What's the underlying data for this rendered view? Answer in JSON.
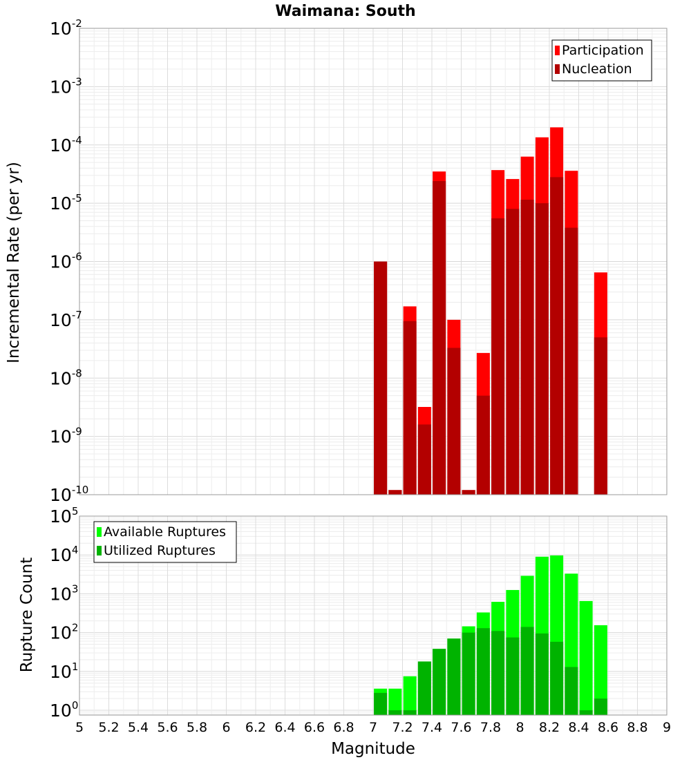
{
  "chart_data": [
    {
      "type": "bar",
      "title": "Waimana: South",
      "ylabel": "Incremental Rate (per yr)",
      "yscale": "log",
      "ylim": [
        1e-10,
        0.01
      ],
      "ytick_labels": [
        {
          "base": "10",
          "exp": "-10"
        },
        {
          "base": "10",
          "exp": "-9"
        },
        {
          "base": "10",
          "exp": "-8"
        },
        {
          "base": "10",
          "exp": "-7"
        },
        {
          "base": "10",
          "exp": "-6"
        },
        {
          "base": "10",
          "exp": "-5"
        },
        {
          "base": "10",
          "exp": "-4"
        },
        {
          "base": "10",
          "exp": "-3"
        },
        {
          "base": "10",
          "exp": "-2"
        }
      ],
      "xlim": [
        5,
        9
      ],
      "grid": true,
      "legend_position": "top-right",
      "x": [
        7.05,
        7.15,
        7.25,
        7.35,
        7.45,
        7.55,
        7.65,
        7.75,
        7.85,
        7.95,
        8.05,
        8.15,
        8.25,
        8.35,
        8.55
      ],
      "series": [
        {
          "name": "Participation",
          "color": "#ff0000",
          "values": [
            1e-06,
            1.2e-10,
            1.7e-07,
            3.2e-09,
            3.5e-05,
            1e-07,
            1.2e-10,
            2.7e-08,
            3.7e-05,
            2.6e-05,
            6.3e-05,
            0.000135,
            0.0002,
            3.6e-05,
            6.5e-07
          ]
        },
        {
          "name": "Nucleation",
          "color": "#b30000",
          "values": [
            1e-06,
            1.2e-10,
            9.5e-08,
            1.6e-09,
            2.4e-05,
            3.3e-08,
            1.2e-10,
            5e-09,
            5.5e-06,
            8e-06,
            1.15e-05,
            1e-05,
            2.8e-05,
            3.8e-06,
            5e-08
          ]
        }
      ]
    },
    {
      "type": "bar",
      "xlabel": "Magnitude",
      "ylabel": "Rupture Count",
      "yscale": "log",
      "ylim": [
        0.75,
        100000.0
      ],
      "ytick_labels": [
        {
          "base": "10",
          "exp": "0"
        },
        {
          "base": "10",
          "exp": "1"
        },
        {
          "base": "10",
          "exp": "2"
        },
        {
          "base": "10",
          "exp": "3"
        },
        {
          "base": "10",
          "exp": "4"
        },
        {
          "base": "10",
          "exp": "5"
        }
      ],
      "xlim": [
        5,
        9
      ],
      "xtick_labels": [
        "5",
        "5.2",
        "5.4",
        "5.6",
        "5.8",
        "6",
        "6.2",
        "6.4",
        "6.6",
        "6.8",
        "7",
        "7.2",
        "7.4",
        "7.6",
        "7.8",
        "8",
        "8.2",
        "8.4",
        "8.6",
        "8.8",
        "9"
      ],
      "grid": true,
      "legend_position": "top-left",
      "x": [
        7.05,
        7.15,
        7.25,
        7.35,
        7.45,
        7.55,
        7.65,
        7.75,
        7.85,
        7.95,
        8.05,
        8.15,
        8.25,
        8.35,
        8.45,
        8.55
      ],
      "series": [
        {
          "name": "Available Ruptures",
          "color": "#00ff00",
          "values": [
            3.6,
            3.6,
            7.5,
            18,
            38,
            70,
            145,
            330,
            620,
            1250,
            2900,
            9000,
            9700,
            3300,
            650,
            155
          ]
        },
        {
          "name": "Utilized Ruptures",
          "color": "#00b300",
          "values": [
            2.8,
            1,
            1,
            18,
            38,
            70,
            100,
            130,
            110,
            75,
            140,
            95,
            58,
            13,
            1,
            2
          ]
        }
      ]
    }
  ]
}
